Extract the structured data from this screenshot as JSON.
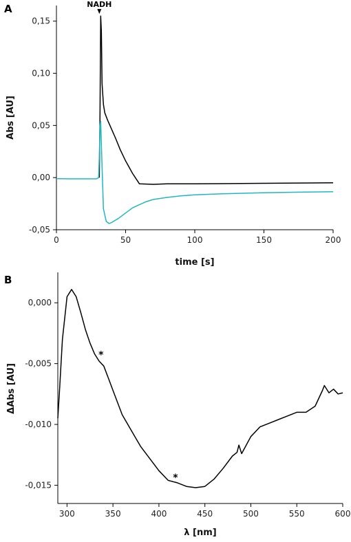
{
  "chart_data": [
    {
      "panel": "A",
      "type": "line",
      "xlabel": "time [s]",
      "ylabel": "Abs [AU]",
      "xlim": [
        0,
        200
      ],
      "ylim": [
        -0.05,
        0.165
      ],
      "xticks": [
        0,
        50,
        100,
        150,
        200
      ],
      "xtick_labels": [
        "0",
        "50",
        "100",
        "150",
        "200"
      ],
      "yticks": [
        -0.05,
        0.0,
        0.05,
        0.1,
        0.15
      ],
      "ytick_labels": [
        "-0,05",
        "0,00",
        "0,05",
        "0,10",
        "0,15"
      ],
      "grid": false,
      "annotations": [
        {
          "text": "NADH",
          "x": 31,
          "y": 0.155,
          "arrow": true
        }
      ],
      "series": [
        {
          "color": "#000000",
          "x": [
            31,
            31.5,
            32,
            32.5,
            33,
            34,
            35,
            37,
            40,
            43,
            46,
            50,
            55,
            60,
            70,
            80,
            100,
            120,
            150,
            175,
            200
          ],
          "y": [
            0.0,
            0.06,
            0.155,
            0.14,
            0.09,
            0.07,
            0.062,
            0.055,
            0.046,
            0.037,
            0.027,
            0.016,
            0.004,
            -0.006,
            -0.0065,
            -0.006,
            -0.006,
            -0.0058,
            -0.0055,
            -0.0052,
            -0.005
          ]
        },
        {
          "color": "#21b6bf",
          "x": [
            0,
            10,
            20,
            29,
            30.5,
            31,
            31.5,
            32,
            33,
            34,
            36,
            38,
            40,
            45,
            50,
            55,
            60,
            65,
            70,
            80,
            90,
            100,
            120,
            150,
            175,
            200
          ],
          "y": [
            -0.001,
            -0.0012,
            -0.0012,
            -0.0012,
            0.0,
            0.02,
            0.05,
            0.054,
            0.01,
            -0.03,
            -0.042,
            -0.044,
            -0.043,
            -0.039,
            -0.034,
            -0.029,
            -0.026,
            -0.023,
            -0.021,
            -0.019,
            -0.0175,
            -0.0165,
            -0.0155,
            -0.0145,
            -0.014,
            -0.0135
          ]
        }
      ]
    },
    {
      "panel": "B",
      "type": "line",
      "xlabel": "λ [nm]",
      "ylabel": "ΔAbs [AU]",
      "xlim": [
        290,
        600
      ],
      "ylim": [
        -0.0165,
        0.0025
      ],
      "xticks": [
        300,
        350,
        400,
        450,
        500,
        550,
        600
      ],
      "xtick_labels": [
        "300",
        "350",
        "400",
        "450",
        "500",
        "550",
        "600"
      ],
      "yticks": [
        0.0,
        -0.005,
        -0.01,
        -0.015
      ],
      "ytick_labels": [
        "0,000",
        "-0,005",
        "-0,010",
        "-0,015"
      ],
      "grid": false,
      "annotations": [
        {
          "text": "*",
          "x": 337,
          "y": -0.0046
        },
        {
          "text": "*",
          "x": 418,
          "y": -0.0147
        }
      ],
      "series": [
        {
          "color": "#000000",
          "x": [
            290,
            292,
            295,
            300,
            305,
            310,
            315,
            320,
            325,
            330,
            335,
            340,
            345,
            350,
            360,
            370,
            380,
            390,
            400,
            410,
            420,
            430,
            440,
            450,
            460,
            470,
            480,
            485,
            487,
            490,
            495,
            500,
            510,
            520,
            530,
            540,
            550,
            560,
            570,
            578,
            580,
            585,
            590,
            595,
            600
          ],
          "y": [
            -0.0095,
            -0.007,
            -0.003,
            0.0005,
            0.0011,
            0.0005,
            -0.0008,
            -0.0022,
            -0.0033,
            -0.0042,
            -0.0048,
            -0.0052,
            -0.0062,
            -0.0072,
            -0.0092,
            -0.0105,
            -0.0118,
            -0.0128,
            -0.0138,
            -0.0146,
            -0.0148,
            -0.0151,
            -0.0152,
            -0.0151,
            -0.0145,
            -0.0136,
            -0.0126,
            -0.0123,
            -0.0117,
            -0.0124,
            -0.0117,
            -0.011,
            -0.0102,
            -0.0099,
            -0.0096,
            -0.0093,
            -0.009,
            -0.009,
            -0.0085,
            -0.0072,
            -0.0068,
            -0.0074,
            -0.0071,
            -0.0075,
            -0.0074
          ]
        }
      ]
    }
  ],
  "panel_labels": [
    "A",
    "B"
  ]
}
